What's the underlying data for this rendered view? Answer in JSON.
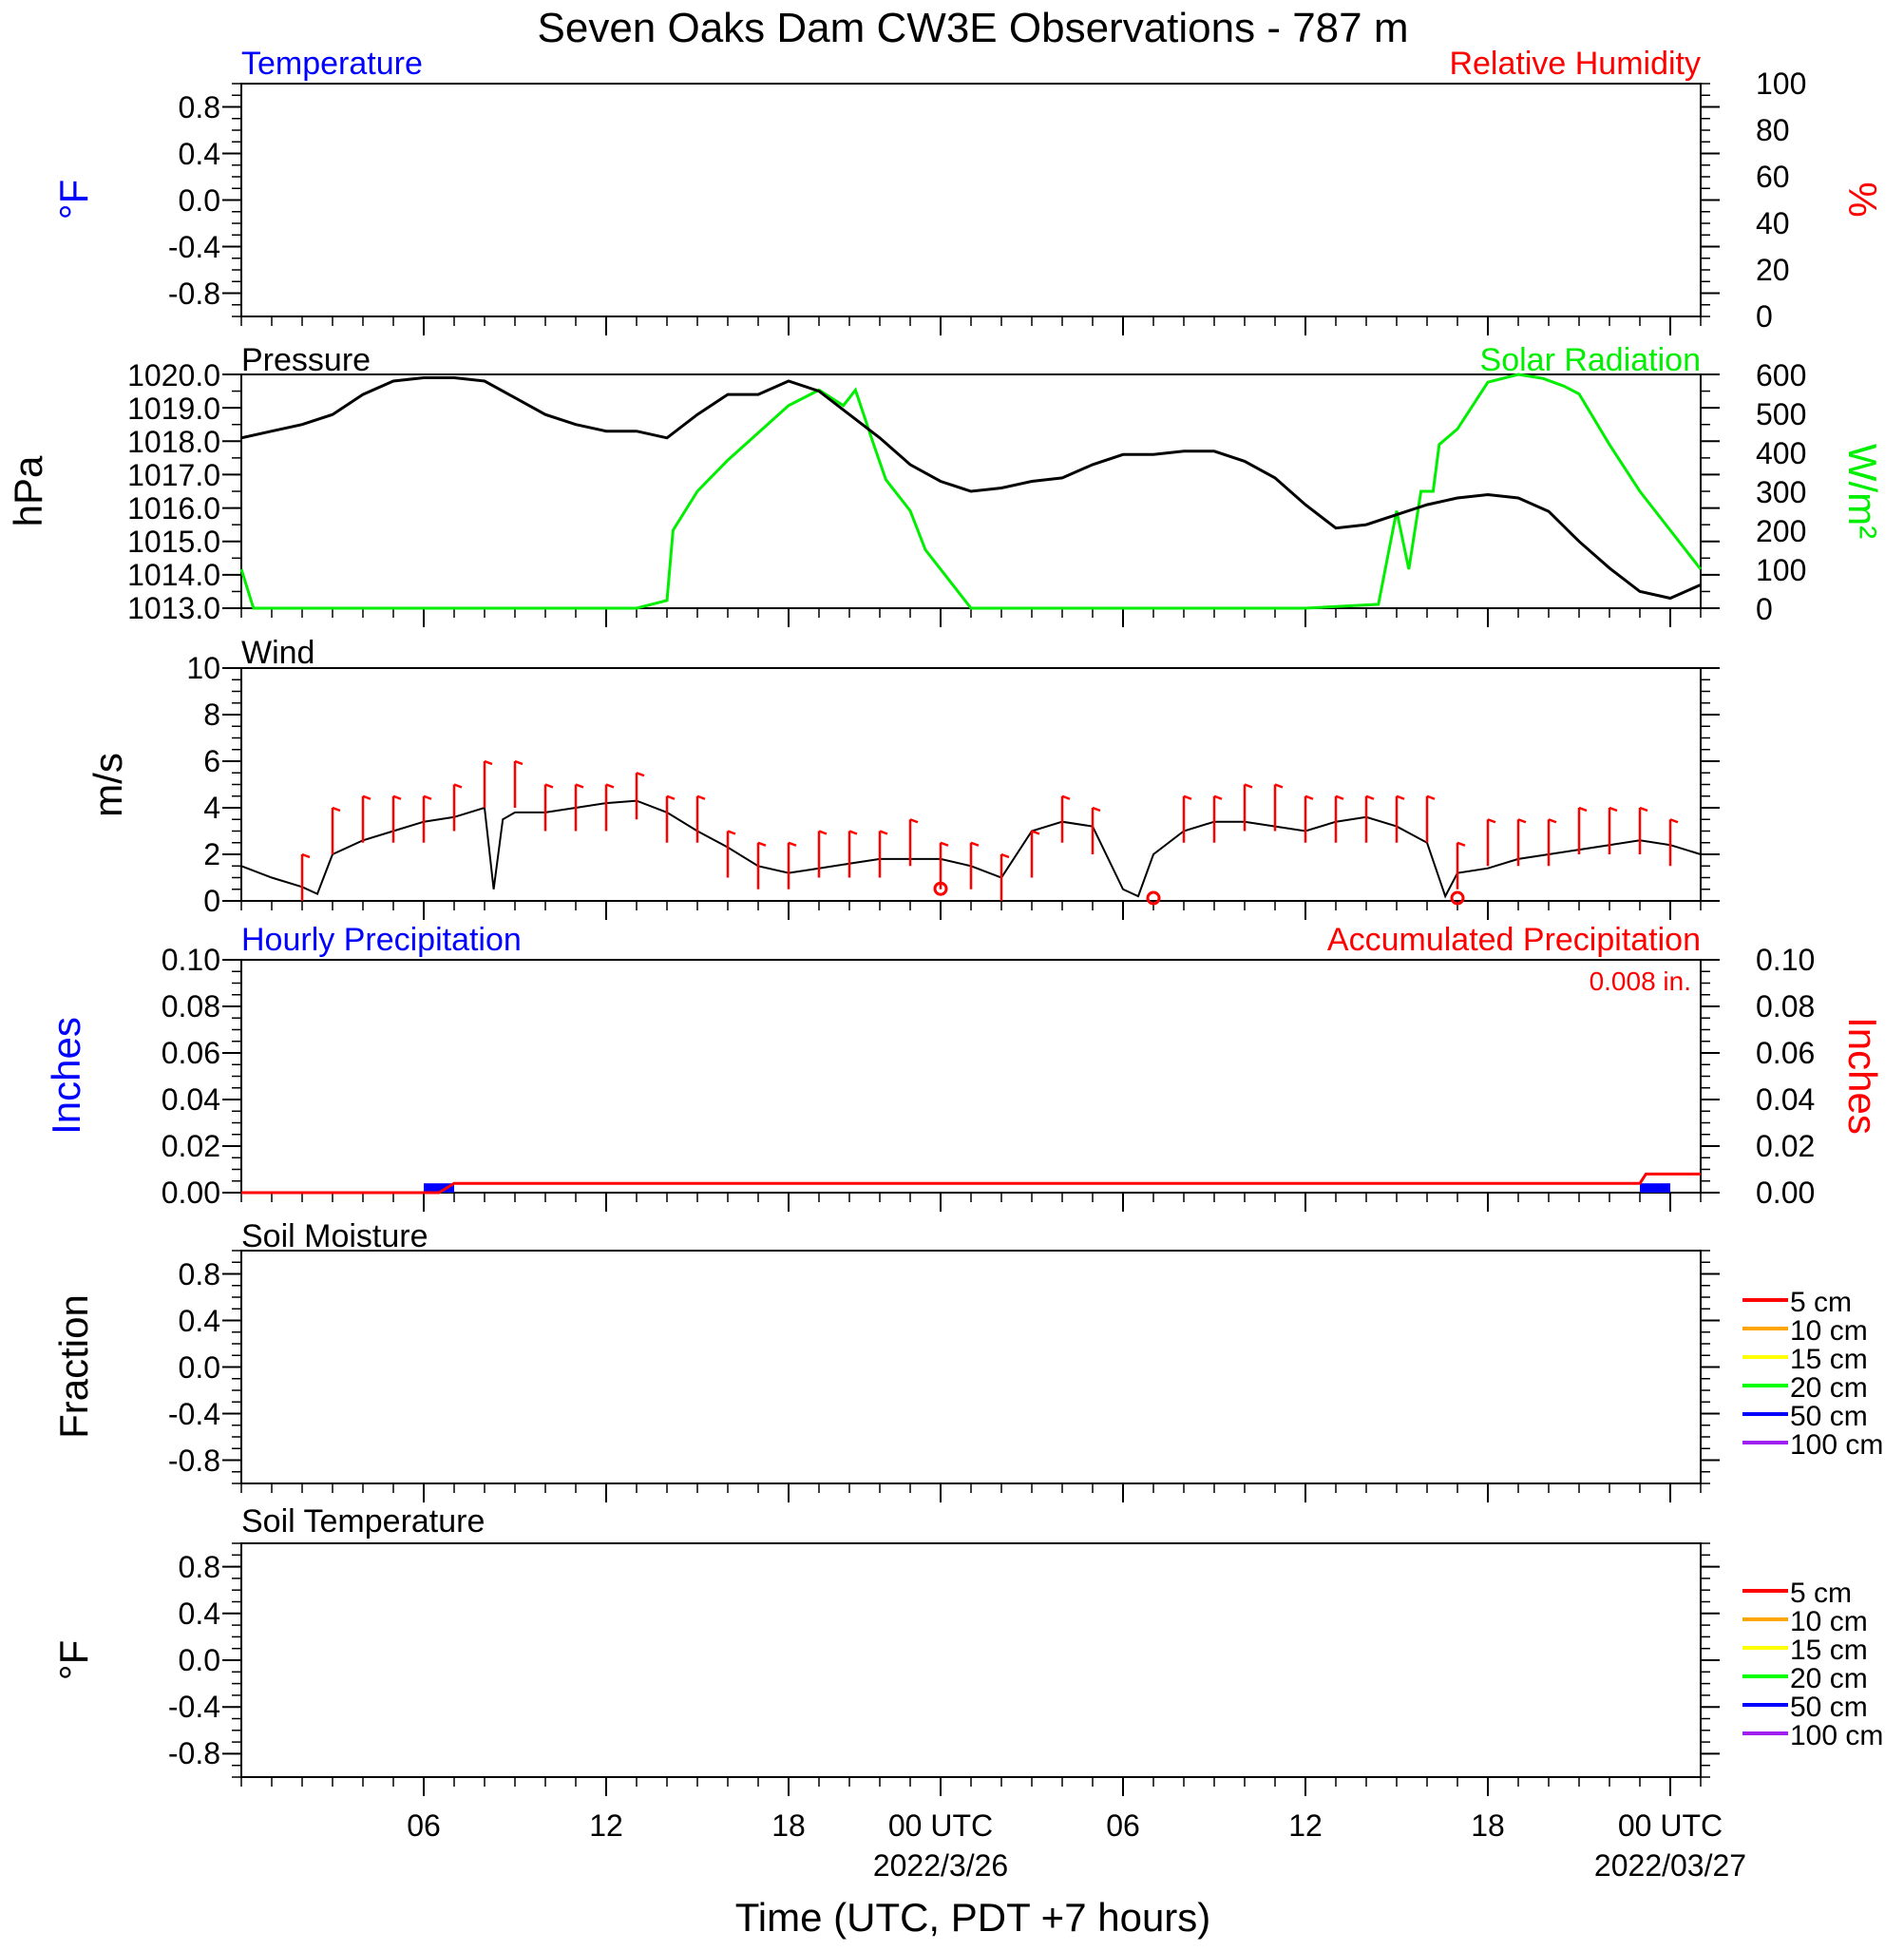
{
  "title": "Seven Oaks Dam CW3E Observations - 787 m",
  "xaxis": {
    "label": "Time (UTC, PDT +7 hours)",
    "range_hours": [
      0,
      48
    ],
    "major_ticks": [
      {
        "hour": 6,
        "label": "06"
      },
      {
        "hour": 12,
        "label": "12"
      },
      {
        "hour": 18,
        "label": "18"
      },
      {
        "hour": 23,
        "label": "00 UTC",
        "date": "2022/3/26"
      },
      {
        "hour": 29,
        "label": "06"
      },
      {
        "hour": 35,
        "label": "12"
      },
      {
        "hour": 41,
        "label": "18"
      },
      {
        "hour": 47,
        "label": "00 UTC",
        "date": "2022/03/27"
      }
    ]
  },
  "panels": {
    "temperature": {
      "title_left": "Temperature",
      "title_right": "Relative Humidity",
      "ylabel_left": "°F",
      "ylabel_right": "%",
      "left_ticks": [
        "0.8",
        "0.4",
        "0.0",
        "-0.4",
        "-0.8"
      ],
      "right_ticks": [
        "100",
        "80",
        "60",
        "40",
        "20",
        "0"
      ]
    },
    "pressure": {
      "title_left": "Pressure",
      "title_right": "Solar Radiation",
      "ylabel_left": "hPa",
      "ylabel_right": "W/m²",
      "left_ticks": [
        "1020.0",
        "1019.0",
        "1018.0",
        "1017.0",
        "1016.0",
        "1015.0",
        "1014.0",
        "1013.0"
      ],
      "right_ticks": [
        "600",
        "500",
        "400",
        "300",
        "200",
        "100",
        "0"
      ]
    },
    "wind": {
      "title_left": "Wind",
      "ylabel_left": "m/s",
      "left_ticks": [
        "10",
        "8",
        "6",
        "4",
        "2",
        "0"
      ]
    },
    "precip": {
      "title_left": "Hourly Precipitation",
      "title_right": "Accumulated Precipitation",
      "total_label": "0.008 in.",
      "ylabel_left": "Inches",
      "ylabel_right": "Inches",
      "left_ticks": [
        "0.10",
        "0.08",
        "0.06",
        "0.04",
        "0.02",
        "0.00"
      ],
      "right_ticks": [
        "0.10",
        "0.08",
        "0.06",
        "0.04",
        "0.02",
        "0.00"
      ]
    },
    "soil_moisture": {
      "title_left": "Soil Moisture",
      "ylabel_left": "Fraction",
      "left_ticks": [
        "0.8",
        "0.4",
        "0.0",
        "-0.4",
        "-0.8"
      ],
      "legend": [
        "5 cm",
        "10 cm",
        "15 cm",
        "20 cm",
        "50 cm",
        "100 cm"
      ]
    },
    "soil_temperature": {
      "title_left": "Soil Temperature",
      "ylabel_left": "°F",
      "left_ticks": [
        "0.8",
        "0.4",
        "0.0",
        "-0.4",
        "-0.8"
      ],
      "legend": [
        "5 cm",
        "10 cm",
        "15 cm",
        "20 cm",
        "50 cm",
        "100 cm"
      ]
    }
  },
  "colors": {
    "temperature": "#0000ff",
    "humidity": "#ff0000",
    "pressure": "#000000",
    "solar": "#00ee00",
    "wind_speed": "#000000",
    "wind_barb": "#ff0000",
    "hourly_precip": "#0000ff",
    "accum_precip": "#ff0000",
    "soil_levels": [
      "#ff0000",
      "#ffa500",
      "#ffff00",
      "#00ff00",
      "#0000ff",
      "#a020f0"
    ]
  },
  "chart_data": [
    {
      "type": "line",
      "panel": "pressure",
      "series": [
        {
          "name": "Pressure",
          "unit": "hPa",
          "x": [
            0,
            1,
            2,
            3,
            4,
            5,
            6,
            7,
            8,
            9,
            10,
            11,
            12,
            13,
            14,
            15,
            16,
            17,
            18,
            19,
            20,
            21,
            22,
            23,
            24,
            25,
            26,
            27,
            28,
            29,
            30,
            31,
            32,
            33,
            34,
            35,
            36,
            37,
            38,
            39,
            40,
            41,
            42,
            43,
            44,
            45,
            46,
            47,
            48
          ],
          "y": [
            1018.1,
            1018.3,
            1018.5,
            1018.8,
            1019.4,
            1019.8,
            1019.9,
            1019.9,
            1019.8,
            1019.3,
            1018.8,
            1018.5,
            1018.3,
            1018.3,
            1018.1,
            1018.8,
            1019.4,
            1019.4,
            1019.8,
            1019.5,
            1018.8,
            1018.1,
            1017.3,
            1016.8,
            1016.5,
            1016.6,
            1016.8,
            1016.9,
            1017.3,
            1017.6,
            1017.6,
            1017.7,
            1017.7,
            1017.4,
            1016.9,
            1016.1,
            1015.4,
            1015.5,
            1015.8,
            1016.1,
            1016.3,
            1016.4,
            1016.3,
            1015.9,
            1015.0,
            1014.2,
            1013.5,
            1013.3,
            1013.7
          ]
        },
        {
          "name": "Solar Radiation",
          "unit": "W/m²",
          "x": [
            0,
            0.4,
            1,
            5,
            10,
            13,
            14,
            14.2,
            15,
            16,
            17,
            18,
            19,
            19.8,
            20.2,
            20.8,
            21.2,
            22,
            22.5,
            23.2,
            24,
            24.5,
            25,
            27,
            30,
            35,
            37.4,
            38,
            38.4,
            38.8,
            39.2,
            39.4,
            40,
            40.5,
            41,
            42,
            42.8,
            43.5,
            44,
            45,
            46,
            47,
            48
          ],
          "y": [
            100,
            0,
            0,
            0,
            0,
            0,
            20,
            200,
            300,
            380,
            450,
            520,
            560,
            520,
            560,
            420,
            330,
            250,
            150,
            80,
            0,
            0,
            0,
            0,
            0,
            0,
            10,
            250,
            100,
            300,
            300,
            420,
            460,
            520,
            580,
            600,
            590,
            570,
            550,
            420,
            300,
            200,
            100
          ]
        }
      ],
      "ylim_left": [
        1013.0,
        1020.0
      ],
      "ylim_right": [
        0,
        600
      ]
    },
    {
      "type": "line",
      "panel": "wind",
      "series": [
        {
          "name": "Wind speed",
          "unit": "m/s",
          "x": [
            0,
            1,
            2,
            2.5,
            3,
            4,
            5,
            6,
            7,
            8,
            8.3,
            8.6,
            9,
            10,
            11,
            12,
            13,
            14,
            15,
            16,
            17,
            18,
            19,
            20,
            21,
            22,
            23,
            24,
            25,
            26,
            27,
            28,
            29,
            29.5,
            30,
            31,
            32,
            33,
            34,
            35,
            36,
            37,
            38,
            39,
            39.6,
            40,
            41,
            42,
            43,
            44,
            45,
            46,
            47,
            48
          ],
          "y": [
            1.5,
            1.0,
            0.6,
            0.3,
            2.0,
            2.6,
            3.0,
            3.4,
            3.6,
            4.0,
            0.5,
            3.5,
            3.8,
            3.8,
            4.0,
            4.2,
            4.3,
            3.8,
            3.0,
            2.3,
            1.5,
            1.2,
            1.4,
            1.6,
            1.8,
            1.8,
            1.8,
            1.5,
            1.0,
            3.0,
            3.4,
            3.2,
            0.5,
            0.2,
            2.0,
            3.0,
            3.4,
            3.4,
            3.2,
            3.0,
            3.4,
            3.6,
            3.2,
            2.5,
            0.2,
            1.2,
            1.4,
            1.8,
            2.0,
            2.2,
            2.4,
            2.6,
            2.4,
            2.0
          ]
        }
      ],
      "barbs": [
        {
          "x": 2,
          "speed": 2.0
        },
        {
          "x": 3,
          "speed": 4.0
        },
        {
          "x": 4,
          "speed": 4.5
        },
        {
          "x": 5,
          "speed": 4.5
        },
        {
          "x": 6,
          "speed": 4.5
        },
        {
          "x": 7,
          "speed": 5.0
        },
        {
          "x": 8,
          "speed": 6.0
        },
        {
          "x": 9,
          "speed": 6.0
        },
        {
          "x": 10,
          "speed": 5.0
        },
        {
          "x": 11,
          "speed": 5.0
        },
        {
          "x": 12,
          "speed": 5.0
        },
        {
          "x": 13,
          "speed": 5.5
        },
        {
          "x": 14,
          "speed": 4.5
        },
        {
          "x": 15,
          "speed": 4.5
        },
        {
          "x": 16,
          "speed": 3.0
        },
        {
          "x": 17,
          "speed": 2.5
        },
        {
          "x": 18,
          "speed": 2.5
        },
        {
          "x": 19,
          "speed": 3.0
        },
        {
          "x": 20,
          "speed": 3.0
        },
        {
          "x": 21,
          "speed": 3.0
        },
        {
          "x": 22,
          "speed": 3.5
        },
        {
          "x": 23,
          "speed": 2.5
        },
        {
          "x": 24,
          "speed": 2.5
        },
        {
          "x": 25,
          "speed": 2.0
        },
        {
          "x": 26,
          "speed": 3.0
        },
        {
          "x": 27,
          "speed": 4.5
        },
        {
          "x": 28,
          "speed": 4.0
        },
        {
          "x": 31,
          "speed": 4.5
        },
        {
          "x": 32,
          "speed": 4.5
        },
        {
          "x": 33,
          "speed": 5.0
        },
        {
          "x": 34,
          "speed": 5.0
        },
        {
          "x": 35,
          "speed": 4.5
        },
        {
          "x": 36,
          "speed": 4.5
        },
        {
          "x": 37,
          "speed": 4.5
        },
        {
          "x": 38,
          "speed": 4.5
        },
        {
          "x": 39,
          "speed": 4.5
        },
        {
          "x": 40,
          "speed": 2.5
        },
        {
          "x": 41,
          "speed": 3.5
        },
        {
          "x": 42,
          "speed": 3.5
        },
        {
          "x": 43,
          "speed": 3.5
        },
        {
          "x": 44,
          "speed": 4.0
        },
        {
          "x": 45,
          "speed": 4.0
        },
        {
          "x": 46,
          "speed": 4.0
        },
        {
          "x": 47,
          "speed": 3.5
        }
      ],
      "calm_markers": [
        {
          "x": 23,
          "speed": 0.4
        },
        {
          "x": 30,
          "speed": 0.0
        },
        {
          "x": 40,
          "speed": 0.0
        }
      ],
      "ylim": [
        0,
        10
      ]
    },
    {
      "type": "bar",
      "panel": "precip",
      "series": [
        {
          "name": "Hourly Precipitation",
          "unit": "in",
          "bars": [
            {
              "x": 6.5,
              "value": 0.004
            },
            {
              "x": 46.5,
              "value": 0.004
            }
          ]
        },
        {
          "name": "Accumulated Precipitation",
          "unit": "in",
          "x": [
            0,
            6.5,
            7,
            46,
            46.2,
            48
          ],
          "y": [
            0.0,
            0.0,
            0.004,
            0.004,
            0.008,
            0.008
          ]
        }
      ],
      "ylim": [
        0.0,
        0.1
      ]
    }
  ]
}
